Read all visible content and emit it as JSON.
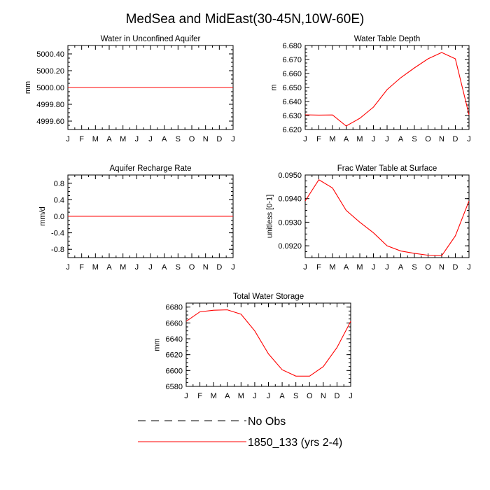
{
  "figure": {
    "title": "MedSea and MidEast(30-45N,10W-60E)"
  },
  "legend": {
    "entries": [
      {
        "label": "No Obs",
        "color": "#000000",
        "style": "dashed"
      },
      {
        "label": "1850_133 (yrs 2-4)",
        "color": "#ff0000",
        "style": "solid"
      }
    ]
  },
  "chart_data": [
    {
      "type": "line",
      "title": "Water in Unconfined Aquifer",
      "ylabel": "mm",
      "x": [
        "J",
        "F",
        "M",
        "A",
        "M",
        "J",
        "J",
        "A",
        "S",
        "O",
        "N",
        "D",
        "J"
      ],
      "ylim": [
        4999.5,
        5000.5
      ],
      "yticks": [
        4999.6,
        4999.8,
        5000.0,
        5000.2,
        5000.4
      ],
      "ytick_labels": [
        "4999.60",
        "4999.80",
        "5000.00",
        "5000.20",
        "5000.40"
      ],
      "yminor": 0.05,
      "series": [
        {
          "name": "1850_133 (yrs 2-4)",
          "color": "#ff0000",
          "values": [
            5000,
            5000,
            5000,
            5000,
            5000,
            5000,
            5000,
            5000,
            5000,
            5000,
            5000,
            5000,
            5000
          ]
        }
      ]
    },
    {
      "type": "line",
      "title": "Water Table Depth",
      "ylabel": "m",
      "x": [
        "J",
        "F",
        "M",
        "A",
        "M",
        "J",
        "J",
        "A",
        "S",
        "O",
        "N",
        "D",
        "J"
      ],
      "ylim": [
        6.62,
        6.68
      ],
      "yticks": [
        6.62,
        6.63,
        6.64,
        6.65,
        6.66,
        6.67,
        6.68
      ],
      "ytick_labels": [
        "6.620",
        "6.630",
        "6.640",
        "6.650",
        "6.660",
        "6.670",
        "6.680"
      ],
      "yminor": 0.0025,
      "series": [
        {
          "name": "1850_133 (yrs 2-4)",
          "color": "#ff0000",
          "values": [
            6.6305,
            6.6303,
            6.6304,
            6.6225,
            6.628,
            6.636,
            6.6485,
            6.657,
            6.664,
            6.6705,
            6.675,
            6.6705,
            6.6305
          ]
        }
      ]
    },
    {
      "type": "line",
      "title": "Aquifer Recharge Rate",
      "ylabel": "mm/d",
      "x": [
        "J",
        "F",
        "M",
        "A",
        "M",
        "J",
        "J",
        "A",
        "S",
        "O",
        "N",
        "D",
        "J"
      ],
      "ylim": [
        -1.0,
        1.0
      ],
      "yticks": [
        -0.8,
        -0.4,
        0.0,
        0.4,
        0.8
      ],
      "ytick_labels": [
        "-0.8",
        "-0.4",
        "0.0",
        "0.4",
        "0.8"
      ],
      "yminor": 0.1,
      "series": [
        {
          "name": "1850_133 (yrs 2-4)",
          "color": "#ff0000",
          "values": [
            0,
            0,
            0,
            0,
            0,
            0,
            0,
            0,
            0,
            0,
            0,
            0,
            0
          ]
        }
      ]
    },
    {
      "type": "line",
      "title": "Frac Water Table at Surface",
      "ylabel": "unitless [0-1]",
      "x": [
        "J",
        "F",
        "M",
        "A",
        "M",
        "J",
        "J",
        "A",
        "S",
        "O",
        "N",
        "D",
        "J"
      ],
      "ylim": [
        0.0915,
        0.095
      ],
      "yticks": [
        0.092,
        0.093,
        0.094,
        0.095
      ],
      "ytick_labels": [
        "0.0920",
        "0.0930",
        "0.0940",
        "0.0950"
      ],
      "yminor": 0.00025,
      "series": [
        {
          "name": "1850_133 (yrs 2-4)",
          "color": "#ff0000",
          "values": [
            0.0939,
            0.0948,
            0.09445,
            0.0935,
            0.093,
            0.09255,
            0.092,
            0.09178,
            0.09168,
            0.0916,
            0.09158,
            0.09242,
            0.0939
          ]
        }
      ]
    },
    {
      "type": "line",
      "title": "Total Water Storage",
      "ylabel": "mm",
      "x": [
        "J",
        "F",
        "M",
        "A",
        "M",
        "J",
        "J",
        "A",
        "S",
        "O",
        "N",
        "D",
        "J"
      ],
      "ylim": [
        6580,
        6685
      ],
      "yticks": [
        6580,
        6600,
        6620,
        6640,
        6660,
        6680
      ],
      "ytick_labels": [
        "6580",
        "6600",
        "6620",
        "6640",
        "6660",
        "6680"
      ],
      "yminor": 5,
      "series": [
        {
          "name": "1850_133 (yrs 2-4)",
          "color": "#ff0000",
          "values": [
            6662,
            6674,
            6676,
            6676.5,
            6671,
            6650,
            6621,
            6601,
            6593,
            6593,
            6605,
            6629,
            6662
          ]
        }
      ]
    }
  ]
}
